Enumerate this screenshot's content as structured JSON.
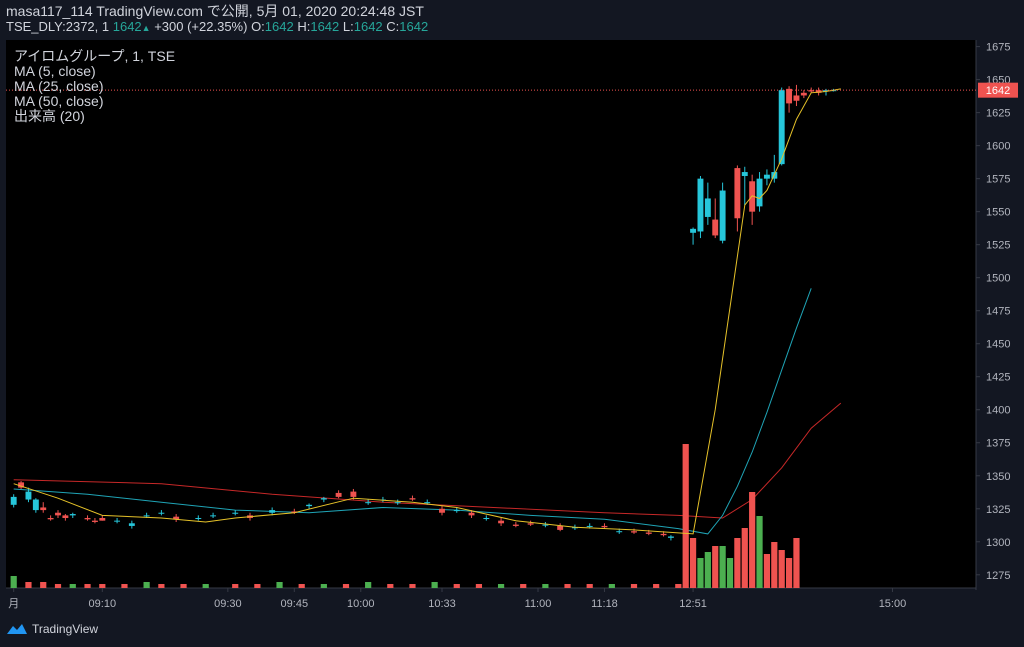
{
  "header": {
    "line1": "masa117_114 TradingView.com で公開, 5月 01, 2020 20:24:48 JST",
    "symbol": "TSE_DLY:2372, 1",
    "last": "1642",
    "arrow": "▲",
    "change": "+300 (+22.35%)",
    "o_label": "O:",
    "o": "1642",
    "h_label": "H:",
    "h": "1642",
    "l_label": "L:",
    "l": "1642",
    "c_label": "C:",
    "c": "1642"
  },
  "legend": {
    "title": "アイロムグループ, 1, TSE",
    "ma5": "MA (5, close)",
    "ma25": "MA (25, close)",
    "ma50": "MA (50, close)",
    "vol": "出来高 (20)"
  },
  "price_label": "1642",
  "footer": {
    "brand": "TradingView"
  },
  "colors": {
    "up": "#26c6da",
    "down": "#ef5350",
    "vol_up": "#4caf50",
    "vol_down": "#ef5350",
    "ma5": "#e6c229",
    "ma25": "#1fa4b6",
    "ma50": "#c62828",
    "bg": "#000000"
  },
  "chart_data": {
    "type": "candlestick",
    "y_axis": {
      "min": 1265,
      "max": 1680,
      "ticks": [
        1275,
        1300,
        1325,
        1350,
        1375,
        1400,
        1425,
        1450,
        1475,
        1500,
        1525,
        1550,
        1575,
        1600,
        1625,
        1650,
        1675
      ]
    },
    "x_ticks": [
      "月",
      "09:10",
      "09:30",
      "09:45",
      "10:00",
      "10:33",
      "11:00",
      "11:18",
      "12:51",
      "15:00"
    ],
    "x_tick_index": [
      0,
      12,
      29,
      38,
      47,
      58,
      71,
      80,
      92,
      119
    ],
    "n_bars": 130,
    "candles": [
      [
        0,
        1328,
        1336,
        1326,
        1334
      ],
      [
        1,
        1345,
        1346,
        1340,
        1341
      ],
      [
        2,
        1332,
        1341,
        1330,
        1338
      ],
      [
        3,
        1324,
        1333,
        1322,
        1332
      ],
      [
        4,
        1326,
        1330,
        1322,
        1324
      ],
      [
        5,
        1318,
        1320,
        1316,
        1317
      ],
      [
        6,
        1322,
        1324,
        1318,
        1320
      ],
      [
        7,
        1320,
        1321,
        1316,
        1318
      ],
      [
        8,
        1320,
        1322,
        1318,
        1321
      ],
      [
        10,
        1318,
        1320,
        1316,
        1317
      ],
      [
        11,
        1316,
        1318,
        1314,
        1315
      ],
      [
        12,
        1318,
        1320,
        1316,
        1316
      ],
      [
        14,
        1316,
        1318,
        1314,
        1316
      ],
      [
        16,
        1312,
        1316,
        1310,
        1314
      ],
      [
        18,
        1320,
        1322,
        1318,
        1320
      ],
      [
        20,
        1322,
        1324,
        1320,
        1322
      ],
      [
        22,
        1319,
        1321,
        1315,
        1317
      ],
      [
        25,
        1318,
        1320,
        1316,
        1318
      ],
      [
        27,
        1320,
        1322,
        1318,
        1320
      ],
      [
        30,
        1322,
        1324,
        1320,
        1322
      ],
      [
        32,
        1320,
        1322,
        1316,
        1318
      ],
      [
        35,
        1322,
        1326,
        1320,
        1324
      ],
      [
        38,
        1323,
        1325,
        1321,
        1322
      ],
      [
        40,
        1327,
        1329,
        1325,
        1328
      ],
      [
        42,
        1332,
        1334,
        1330,
        1333
      ],
      [
        44,
        1337,
        1339,
        1333,
        1334
      ],
      [
        46,
        1338,
        1340,
        1332,
        1334
      ],
      [
        48,
        1330,
        1332,
        1328,
        1330
      ],
      [
        50,
        1332,
        1334,
        1330,
        1332
      ],
      [
        52,
        1330,
        1332,
        1328,
        1330
      ],
      [
        54,
        1333,
        1335,
        1331,
        1332
      ],
      [
        56,
        1330,
        1332,
        1328,
        1330
      ],
      [
        58,
        1325,
        1327,
        1320,
        1322
      ],
      [
        60,
        1324,
        1326,
        1322,
        1324
      ],
      [
        62,
        1322,
        1324,
        1318,
        1320
      ],
      [
        64,
        1318,
        1320,
        1316,
        1318
      ],
      [
        66,
        1316,
        1318,
        1312,
        1314
      ],
      [
        68,
        1313,
        1315,
        1311,
        1312
      ],
      [
        70,
        1314,
        1316,
        1312,
        1313
      ],
      [
        72,
        1313,
        1315,
        1311,
        1313
      ],
      [
        74,
        1312,
        1314,
        1308,
        1309
      ],
      [
        76,
        1311,
        1313,
        1309,
        1311
      ],
      [
        78,
        1312,
        1314,
        1310,
        1312
      ],
      [
        80,
        1312,
        1314,
        1310,
        1311
      ],
      [
        82,
        1308,
        1310,
        1306,
        1308
      ],
      [
        84,
        1308,
        1310,
        1306,
        1307
      ],
      [
        86,
        1307,
        1309,
        1305,
        1306
      ],
      [
        88,
        1306,
        1308,
        1304,
        1305
      ],
      [
        89,
        1303,
        1305,
        1301,
        1304
      ],
      [
        92,
        1534,
        1538,
        1525,
        1537
      ],
      [
        93,
        1535,
        1577,
        1530,
        1575
      ],
      [
        94,
        1546,
        1572,
        1540,
        1560
      ],
      [
        95,
        1544,
        1560,
        1530,
        1532
      ],
      [
        96,
        1528,
        1572,
        1526,
        1566
      ],
      [
        98,
        1583,
        1585,
        1535,
        1545
      ],
      [
        99,
        1577,
        1584,
        1555,
        1580
      ],
      [
        100,
        1573,
        1578,
        1540,
        1550
      ],
      [
        101,
        1554,
        1580,
        1550,
        1575
      ],
      [
        102,
        1575,
        1582,
        1570,
        1578
      ],
      [
        103,
        1575,
        1593,
        1572,
        1580
      ],
      [
        104,
        1586,
        1644,
        1585,
        1642
      ],
      [
        105,
        1643,
        1645,
        1625,
        1632
      ],
      [
        106,
        1638,
        1646,
        1630,
        1634
      ],
      [
        107,
        1640,
        1642,
        1636,
        1638
      ],
      [
        108,
        1642,
        1644,
        1640,
        1641
      ],
      [
        109,
        1642,
        1644,
        1638,
        1640
      ],
      [
        110,
        1641,
        1643,
        1638,
        1642
      ],
      [
        111,
        1642,
        1643,
        1641,
        1642
      ]
    ],
    "volume": [
      [
        0,
        "up",
        6
      ],
      [
        2,
        "down",
        3
      ],
      [
        4,
        "down",
        3
      ],
      [
        6,
        "down",
        2
      ],
      [
        8,
        "up",
        2
      ],
      [
        10,
        "down",
        2
      ],
      [
        12,
        "down",
        2
      ],
      [
        15,
        "down",
        2
      ],
      [
        18,
        "up",
        3
      ],
      [
        20,
        "down",
        2
      ],
      [
        23,
        "down",
        2
      ],
      [
        26,
        "up",
        2
      ],
      [
        30,
        "down",
        2
      ],
      [
        33,
        "down",
        2
      ],
      [
        36,
        "up",
        3
      ],
      [
        39,
        "down",
        2
      ],
      [
        42,
        "up",
        2
      ],
      [
        45,
        "down",
        2
      ],
      [
        48,
        "up",
        3
      ],
      [
        51,
        "down",
        2
      ],
      [
        54,
        "down",
        2
      ],
      [
        57,
        "up",
        3
      ],
      [
        60,
        "down",
        2
      ],
      [
        63,
        "down",
        2
      ],
      [
        66,
        "up",
        2
      ],
      [
        69,
        "down",
        2
      ],
      [
        72,
        "up",
        2
      ],
      [
        75,
        "down",
        2
      ],
      [
        78,
        "down",
        2
      ],
      [
        81,
        "up",
        2
      ],
      [
        84,
        "down",
        2
      ],
      [
        87,
        "down",
        2
      ],
      [
        90,
        "down",
        2
      ],
      [
        91,
        "down",
        72
      ],
      [
        92,
        "down",
        25
      ],
      [
        93,
        "up",
        15
      ],
      [
        94,
        "up",
        18
      ],
      [
        95,
        "down",
        21
      ],
      [
        96,
        "up",
        21
      ],
      [
        97,
        "up",
        15
      ],
      [
        98,
        "down",
        25
      ],
      [
        99,
        "down",
        30
      ],
      [
        100,
        "down",
        48
      ],
      [
        101,
        "up",
        36
      ],
      [
        102,
        "down",
        17
      ],
      [
        103,
        "down",
        23
      ],
      [
        104,
        "down",
        19
      ],
      [
        105,
        "down",
        15
      ],
      [
        106,
        "down",
        25
      ]
    ],
    "volume_max": 75,
    "ma5": [
      [
        0,
        1344
      ],
      [
        6,
        1333
      ],
      [
        12,
        1320
      ],
      [
        20,
        1318
      ],
      [
        26,
        1315
      ],
      [
        30,
        1318
      ],
      [
        38,
        1322
      ],
      [
        46,
        1333
      ],
      [
        54,
        1330
      ],
      [
        60,
        1326
      ],
      [
        68,
        1316
      ],
      [
        76,
        1311
      ],
      [
        84,
        1309
      ],
      [
        92,
        1306
      ],
      [
        95,
        1400
      ],
      [
        99,
        1555
      ],
      [
        100,
        1562
      ],
      [
        101,
        1560
      ],
      [
        102,
        1566
      ],
      [
        104,
        1590
      ],
      [
        106,
        1620
      ],
      [
        108,
        1640
      ],
      [
        110,
        1641
      ],
      [
        112,
        1643
      ]
    ],
    "ma25": [
      [
        0,
        1340
      ],
      [
        10,
        1336
      ],
      [
        20,
        1330
      ],
      [
        30,
        1324
      ],
      [
        40,
        1322
      ],
      [
        50,
        1326
      ],
      [
        60,
        1324
      ],
      [
        70,
        1320
      ],
      [
        80,
        1317
      ],
      [
        90,
        1310
      ],
      [
        94,
        1306
      ],
      [
        96,
        1320
      ],
      [
        98,
        1342
      ],
      [
        100,
        1368
      ],
      [
        102,
        1398
      ],
      [
        104,
        1430
      ],
      [
        106,
        1462
      ],
      [
        108,
        1492
      ]
    ],
    "ma50": [
      [
        0,
        1347
      ],
      [
        20,
        1344
      ],
      [
        35,
        1336
      ],
      [
        50,
        1330
      ],
      [
        65,
        1326
      ],
      [
        80,
        1322
      ],
      [
        90,
        1320
      ],
      [
        96,
        1318
      ],
      [
        100,
        1332
      ],
      [
        104,
        1356
      ],
      [
        108,
        1386
      ],
      [
        112,
        1405
      ]
    ]
  }
}
